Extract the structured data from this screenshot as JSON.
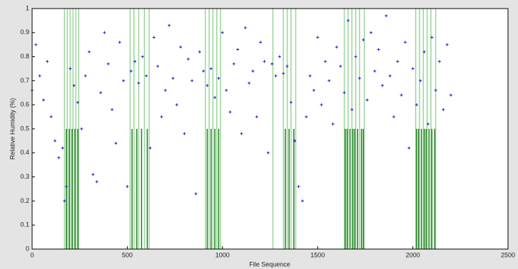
{
  "chart_data": {
    "type": "scatter",
    "xlabel": "File Sequence",
    "ylabel": "Relative Humidity (%)",
    "xlim": [
      0,
      2500
    ],
    "xticks": [
      0,
      500,
      1000,
      1500,
      2000,
      2500
    ],
    "ylim": [
      0,
      1
    ],
    "yticks": [
      0,
      0.1,
      0.2,
      0.3,
      0.4,
      0.5,
      0.6,
      0.7,
      0.8,
      0.9,
      1
    ],
    "color": "#1f1fd6",
    "x": [
      0,
      20,
      40,
      60,
      80,
      100,
      120,
      140,
      160,
      170,
      180,
      200,
      220,
      240,
      260,
      280,
      300,
      320,
      340,
      360,
      380,
      400,
      420,
      440,
      460,
      480,
      500,
      520,
      540,
      560,
      580,
      600,
      620,
      640,
      660,
      680,
      700,
      720,
      740,
      760,
      780,
      800,
      820,
      840,
      860,
      880,
      900,
      920,
      940,
      960,
      980,
      1000,
      1020,
      1040,
      1060,
      1080,
      1100,
      1120,
      1140,
      1160,
      1180,
      1200,
      1220,
      1240,
      1260,
      1280,
      1300,
      1320,
      1340,
      1360,
      1380,
      1400,
      1420,
      1440,
      1460,
      1480,
      1500,
      1520,
      1540,
      1560,
      1580,
      1600,
      1620,
      1640,
      1660,
      1680,
      1700,
      1720,
      1740,
      1760,
      1780,
      1800,
      1820,
      1840,
      1860,
      1880,
      1900,
      1920,
      1940,
      1960,
      1980,
      2000,
      2020,
      2040,
      2060,
      2080,
      2100,
      2120,
      2140,
      2160,
      2180,
      2200
    ],
    "values": [
      0.66,
      0.85,
      0.72,
      0.62,
      0.78,
      0.55,
      0.45,
      0.38,
      0.42,
      0.2,
      0.26,
      0.75,
      0.68,
      0.61,
      0.5,
      0.72,
      0.82,
      0.31,
      0.28,
      0.65,
      0.9,
      0.77,
      0.58,
      0.44,
      0.86,
      0.7,
      0.26,
      0.74,
      0.78,
      0.69,
      0.8,
      0.72,
      0.42,
      0.88,
      0.76,
      0.55,
      0.66,
      0.93,
      0.71,
      0.6,
      0.84,
      0.48,
      0.79,
      0.7,
      0.23,
      0.82,
      0.74,
      0.68,
      0.75,
      0.63,
      0.71,
      0.9,
      0.66,
      0.57,
      0.77,
      0.83,
      0.48,
      0.92,
      0.69,
      0.74,
      0.55,
      0.86,
      0.78,
      0.4,
      0.77,
      0.72,
      0.8,
      0.73,
      0.76,
      0.61,
      0.45,
      0.26,
      0.2,
      0.55,
      0.72,
      0.66,
      0.88,
      0.6,
      0.78,
      0.7,
      0.52,
      0.84,
      0.76,
      0.65,
      0.95,
      0.58,
      0.8,
      0.71,
      0.87,
      0.62,
      0.9,
      0.74,
      0.83,
      0.68,
      0.97,
      0.72,
      0.55,
      0.78,
      0.64,
      0.86,
      0.42,
      0.75,
      0.6,
      0.7,
      0.82,
      0.52,
      0.88,
      0.66,
      0.78,
      0.58,
      0.85,
      0.64
    ],
    "vlines": [
      {
        "color": "#9ad69a",
        "top": 1,
        "x": [
          170,
          185,
          200,
          215,
          230,
          245,
          515,
          535,
          560,
          590,
          615,
          910,
          930,
          950,
          970,
          990,
          1265,
          1320,
          1340,
          1360,
          1385,
          1640,
          1660,
          1680,
          1700,
          1720,
          1745,
          2015,
          2035,
          2055,
          2075,
          2095,
          2120
        ]
      },
      {
        "color": "#1f7f1f",
        "top": 0.5,
        "x": [
          180,
          195,
          210,
          225,
          240,
          525,
          550,
          575,
          605,
          920,
          940,
          960,
          980,
          1330,
          1350,
          1375,
          1645,
          1655,
          1670,
          1685,
          1695,
          1710,
          1730,
          1740,
          2020,
          2030,
          2045,
          2060,
          2070,
          2085,
          2100,
          2115
        ]
      }
    ]
  }
}
